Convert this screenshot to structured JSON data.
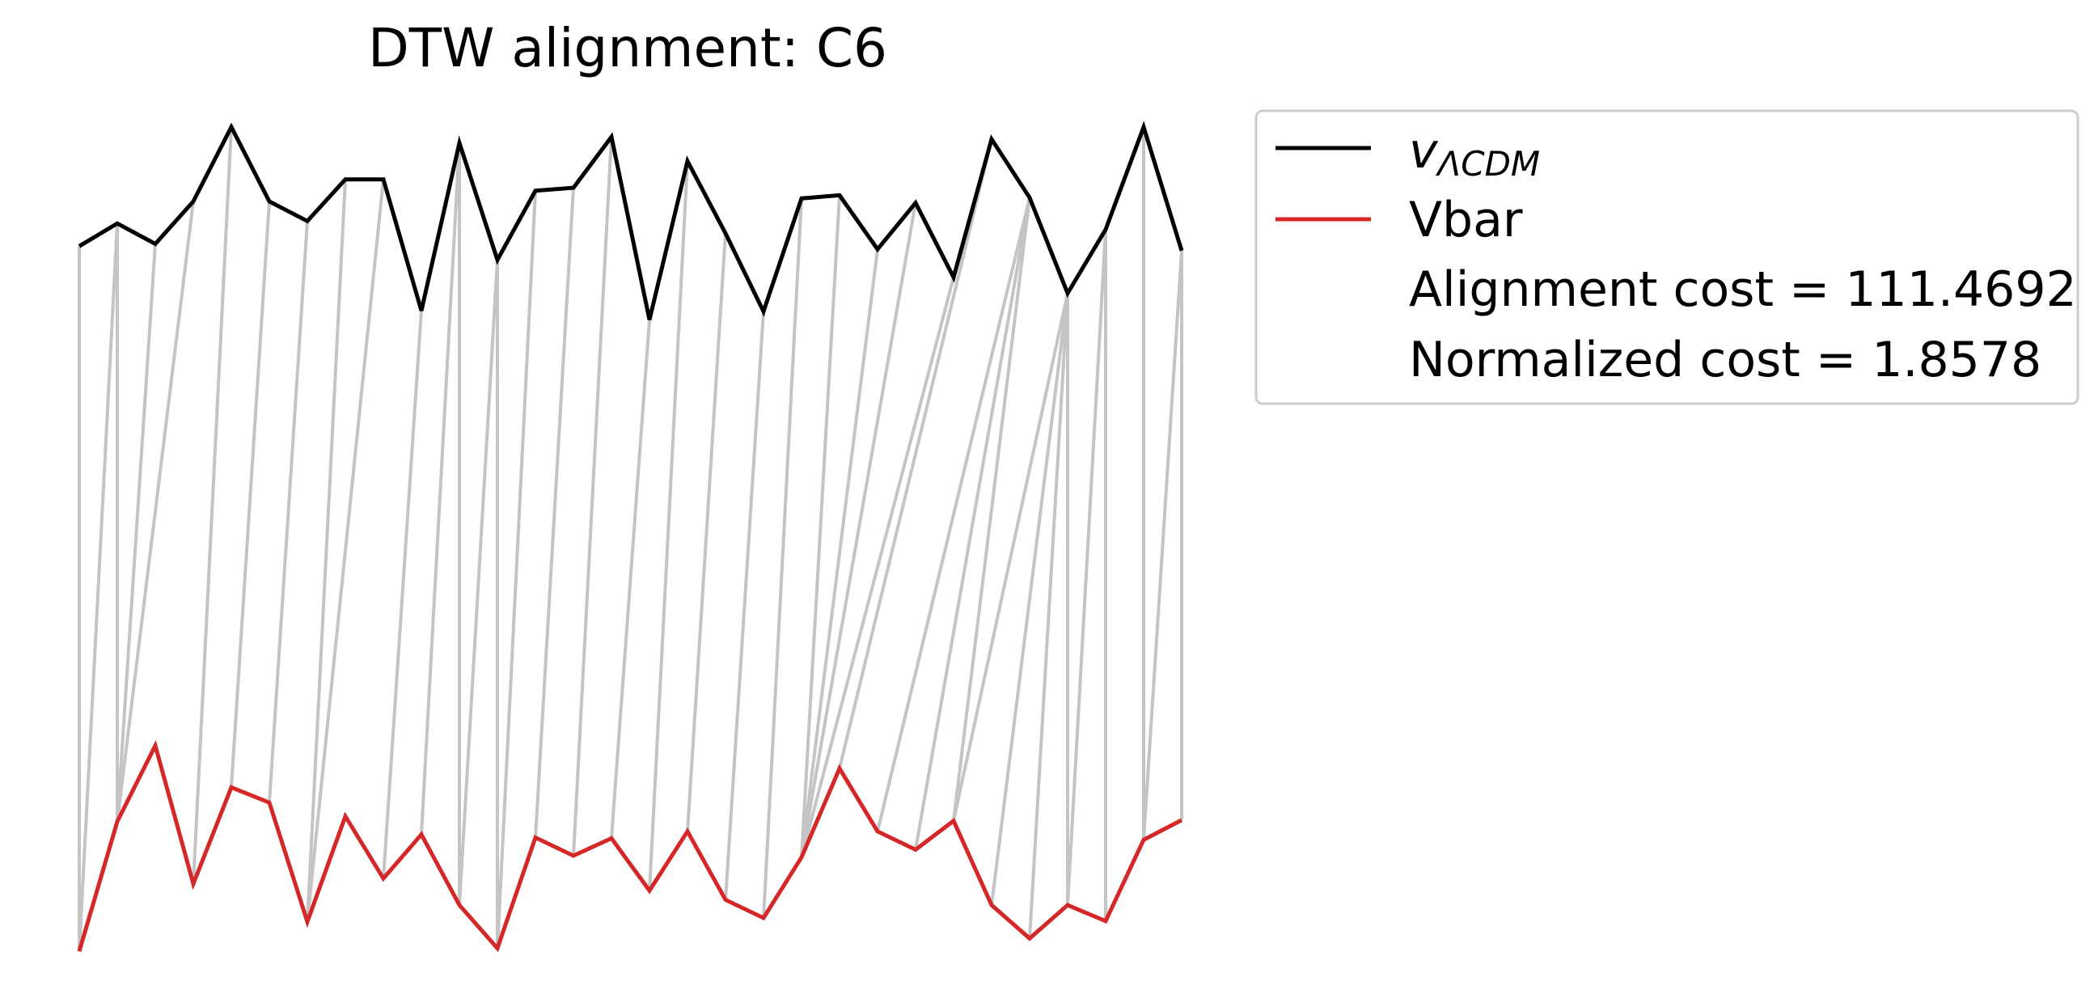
{
  "chart_data": {
    "type": "line",
    "title": "DTW alignment: C6",
    "xlabel": "",
    "ylabel": "",
    "axes_visible": false,
    "grid": false,
    "legend_placement": "outside-right",
    "x": [
      0,
      1,
      2,
      3,
      4,
      5,
      6,
      7,
      8,
      9,
      10,
      11,
      12,
      13,
      14,
      15,
      16,
      17,
      18,
      19,
      20,
      21,
      22,
      23,
      24,
      25,
      26,
      27,
      28,
      29
    ],
    "series": [
      {
        "name": "v_ΛCDM",
        "color": "#000000",
        "values": [
          0.603,
          0.633,
          0.606,
          0.662,
          0.76,
          0.662,
          0.636,
          0.691,
          0.691,
          0.518,
          0.739,
          0.585,
          0.676,
          0.68,
          0.747,
          0.506,
          0.715,
          0.62,
          0.517,
          0.666,
          0.67,
          0.599,
          0.66,
          0.562,
          0.744,
          0.667,
          0.541,
          0.625,
          0.76,
          0.597
        ]
      },
      {
        "name": "Vbar",
        "color": "#d62728",
        "values": [
          -0.326,
          -0.155,
          -0.055,
          -0.237,
          -0.11,
          -0.13,
          -0.287,
          -0.148,
          -0.23,
          -0.172,
          -0.265,
          -0.322,
          -0.176,
          -0.2,
          -0.177,
          -0.246,
          -0.168,
          -0.258,
          -0.282,
          -0.202,
          -0.085,
          -0.168,
          -0.192,
          -0.154,
          -0.265,
          -0.309,
          -0.265,
          -0.286,
          -0.179,
          -0.153
        ]
      }
    ],
    "alignment": [
      [
        0,
        0
      ],
      [
        1,
        0
      ],
      [
        1,
        1
      ],
      [
        2,
        1
      ],
      [
        3,
        1
      ],
      [
        4,
        3
      ],
      [
        5,
        4
      ],
      [
        6,
        5
      ],
      [
        7,
        6
      ],
      [
        8,
        6
      ],
      [
        9,
        8
      ],
      [
        10,
        9
      ],
      [
        10,
        10
      ],
      [
        11,
        10
      ],
      [
        11,
        11
      ],
      [
        12,
        11
      ],
      [
        13,
        12
      ],
      [
        14,
        13
      ],
      [
        15,
        14
      ],
      [
        16,
        15
      ],
      [
        17,
        16
      ],
      [
        18,
        17
      ],
      [
        19,
        18
      ],
      [
        20,
        19
      ],
      [
        21,
        19
      ],
      [
        22,
        19
      ],
      [
        23,
        19
      ],
      [
        24,
        20
      ],
      [
        25,
        21
      ],
      [
        25,
        22
      ],
      [
        25,
        23
      ],
      [
        26,
        23
      ],
      [
        26,
        24
      ],
      [
        26,
        25
      ],
      [
        26,
        26
      ],
      [
        27,
        26
      ],
      [
        27,
        27
      ],
      [
        28,
        28
      ],
      [
        29,
        28
      ],
      [
        29,
        29
      ]
    ],
    "annotations": [
      "Alignment cost = 111.4692",
      "Normalized cost = 1.8578"
    ],
    "legend": {
      "entries": [
        {
          "label": "v",
          "subscript": "ΛCDM",
          "color": "#000000"
        },
        {
          "label": "Vbar",
          "color": "#d62728"
        }
      ]
    }
  }
}
